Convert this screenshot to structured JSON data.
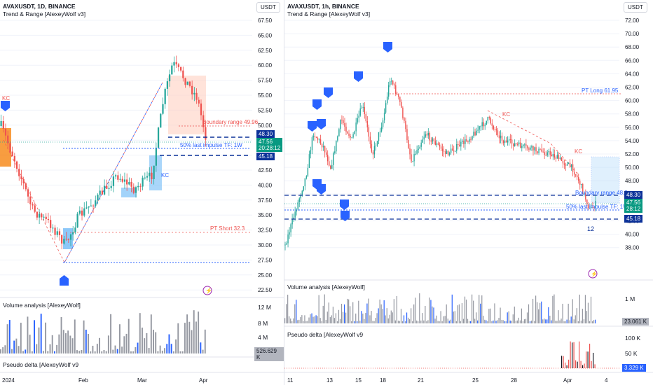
{
  "left": {
    "title": "AVAXUSDT, 1D, BINANCE",
    "subtitle": "Trend & Range [AlexeyWolf v3]",
    "currency": "USDT",
    "y_ticks": [
      "67.50",
      "65.00",
      "62.50",
      "60.00",
      "57.50",
      "55.00",
      "52.50",
      "50.00",
      "47.50",
      "45.00",
      "42.50",
      "40.00",
      "37.50",
      "35.00",
      "32.50",
      "30.00",
      "27.50",
      "25.00",
      "22.50"
    ],
    "annotations": {
      "boundary": "Boundary range 49.96",
      "impulse": "50% last impulse TF: 1W",
      "pt_short": "PT Short 32.3",
      "kc_left": "KC",
      "kc_mid": "KC"
    },
    "tags": {
      "p1": "48.30",
      "p2": "47.56",
      "p2_time": "20:28:12",
      "p3": "45.18"
    },
    "volume_label": "Volume analysis [AlexeyWolf]",
    "volume_ticks": [
      "12 M",
      "8 M",
      "4 M"
    ],
    "volume_value": "526.629 K",
    "delta_label": "Pseudo delta [AlexeyWolf v9",
    "x_labels": [
      "2024",
      "Feb",
      "Mar",
      "Apr"
    ]
  },
  "right": {
    "title": "AVAXUSDT, 1h, BINANCE",
    "subtitle": "Trend & Range [AlexeyWolf v3]",
    "currency": "USDT",
    "y_ticks": [
      "72.00",
      "70.00",
      "68.00",
      "66.00",
      "64.00",
      "62.00",
      "60.00",
      "58.00",
      "56.00",
      "54.00",
      "52.00",
      "50.00",
      "48.00",
      "46.00",
      "44.00",
      "42.00",
      "40.00",
      "38.00"
    ],
    "annotations": {
      "pt_long": "PT Long 61.95",
      "kc1": "KC",
      "kc2": "KC",
      "boundary": "Boundary range 48.3",
      "impulse": "50% last impulse TF: 1W",
      "count": "12"
    },
    "tags": {
      "p1": "48.30",
      "p2": "47.56",
      "p2_time": "28:12",
      "p3": "45.18"
    },
    "volume_label": "Volume analysis [AlexeyWolf]",
    "volume_ticks": [
      "1 M"
    ],
    "volume_value": "23.061 K",
    "delta_label": "Pseudo delta [AlexeyWolf v9",
    "delta_ticks": [
      "100 K",
      "50 K"
    ],
    "delta_value": "3.329 K",
    "x_labels": [
      "11",
      "13",
      "15",
      "18",
      "21",
      "25",
      "28",
      "Apr",
      "4"
    ]
  },
  "colors": {
    "up": "#26a69a",
    "down": "#ef5350",
    "blue": "#2962ff",
    "green_tag": "#089981",
    "navy": "#0c3299"
  }
}
